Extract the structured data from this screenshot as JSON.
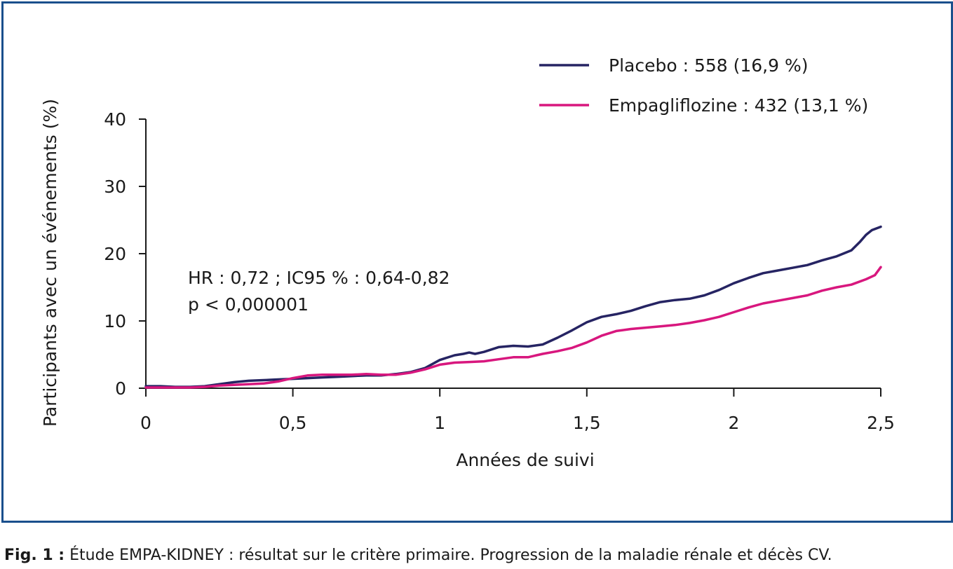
{
  "chart_data": {
    "type": "line",
    "title": "",
    "xlabel": "Années de suivi",
    "ylabel": "Participants avec un événements (%)",
    "xlim": [
      0,
      2.5
    ],
    "ylim": [
      0,
      40
    ],
    "x_ticks": [
      0,
      0.5,
      1,
      1.5,
      2,
      2.5
    ],
    "x_tick_labels": [
      "0",
      "0,5",
      "1",
      "1,5",
      "2",
      "2,5"
    ],
    "y_ticks": [
      0,
      10,
      20,
      30,
      40
    ],
    "y_tick_labels": [
      "0",
      "10",
      "20",
      "30",
      "40"
    ],
    "grid": false,
    "legend_position": "top-right",
    "series": [
      {
        "name": "Placebo : 558 (16,9 %)",
        "color": "#262463",
        "x": [
          0,
          0.05,
          0.1,
          0.15,
          0.2,
          0.25,
          0.3,
          0.35,
          0.4,
          0.45,
          0.5,
          0.55,
          0.6,
          0.65,
          0.7,
          0.75,
          0.8,
          0.85,
          0.9,
          0.95,
          1.0,
          1.05,
          1.08,
          1.1,
          1.12,
          1.15,
          1.2,
          1.25,
          1.3,
          1.35,
          1.4,
          1.45,
          1.5,
          1.55,
          1.6,
          1.65,
          1.7,
          1.75,
          1.8,
          1.85,
          1.9,
          1.95,
          2.0,
          2.05,
          2.1,
          2.15,
          2.2,
          2.25,
          2.3,
          2.35,
          2.4,
          2.43,
          2.45,
          2.47,
          2.5
        ],
        "y": [
          0.3,
          0.3,
          0.2,
          0.2,
          0.3,
          0.6,
          0.9,
          1.1,
          1.2,
          1.3,
          1.4,
          1.5,
          1.6,
          1.7,
          1.8,
          1.9,
          1.9,
          2.1,
          2.4,
          3.0,
          4.2,
          4.9,
          5.1,
          5.3,
          5.1,
          5.4,
          6.1,
          6.3,
          6.2,
          6.5,
          7.5,
          8.6,
          9.8,
          10.6,
          11.0,
          11.5,
          12.2,
          12.8,
          13.1,
          13.3,
          13.8,
          14.6,
          15.6,
          16.4,
          17.1,
          17.5,
          17.9,
          18.3,
          19.0,
          19.6,
          20.5,
          21.8,
          22.8,
          23.5,
          24.0
        ]
      },
      {
        "name": "Empagliflozine : 432 (13,1 %)",
        "color": "#d8177e",
        "x": [
          0,
          0.05,
          0.1,
          0.15,
          0.2,
          0.25,
          0.3,
          0.35,
          0.4,
          0.45,
          0.5,
          0.55,
          0.6,
          0.65,
          0.7,
          0.75,
          0.8,
          0.85,
          0.9,
          0.95,
          1.0,
          1.05,
          1.1,
          1.15,
          1.2,
          1.25,
          1.3,
          1.35,
          1.4,
          1.45,
          1.5,
          1.55,
          1.6,
          1.65,
          1.7,
          1.75,
          1.8,
          1.85,
          1.9,
          1.95,
          2.0,
          2.05,
          2.1,
          2.15,
          2.2,
          2.25,
          2.3,
          2.35,
          2.4,
          2.45,
          2.48,
          2.5
        ],
        "y": [
          0.1,
          0.1,
          0.1,
          0.1,
          0.2,
          0.4,
          0.5,
          0.6,
          0.7,
          1.0,
          1.5,
          1.9,
          2.0,
          2.0,
          2.0,
          2.1,
          2.0,
          2.0,
          2.3,
          2.8,
          3.5,
          3.8,
          3.9,
          4.0,
          4.3,
          4.6,
          4.6,
          5.1,
          5.5,
          6.0,
          6.8,
          7.8,
          8.5,
          8.8,
          9.0,
          9.2,
          9.4,
          9.7,
          10.1,
          10.6,
          11.3,
          12.0,
          12.6,
          13.0,
          13.4,
          13.8,
          14.5,
          15.0,
          15.4,
          16.2,
          16.8,
          18.0
        ]
      }
    ],
    "annotations": [
      "HR : 0,72 ; IC95 % : 0,64-0,82",
      "p < 0,000001"
    ]
  },
  "caption": {
    "prefix": "Fig. 1 :",
    "text": " Étude EMPA-KIDNEY : résultat sur le critère primaire. Progression de la maladie rénale et décès CV."
  }
}
